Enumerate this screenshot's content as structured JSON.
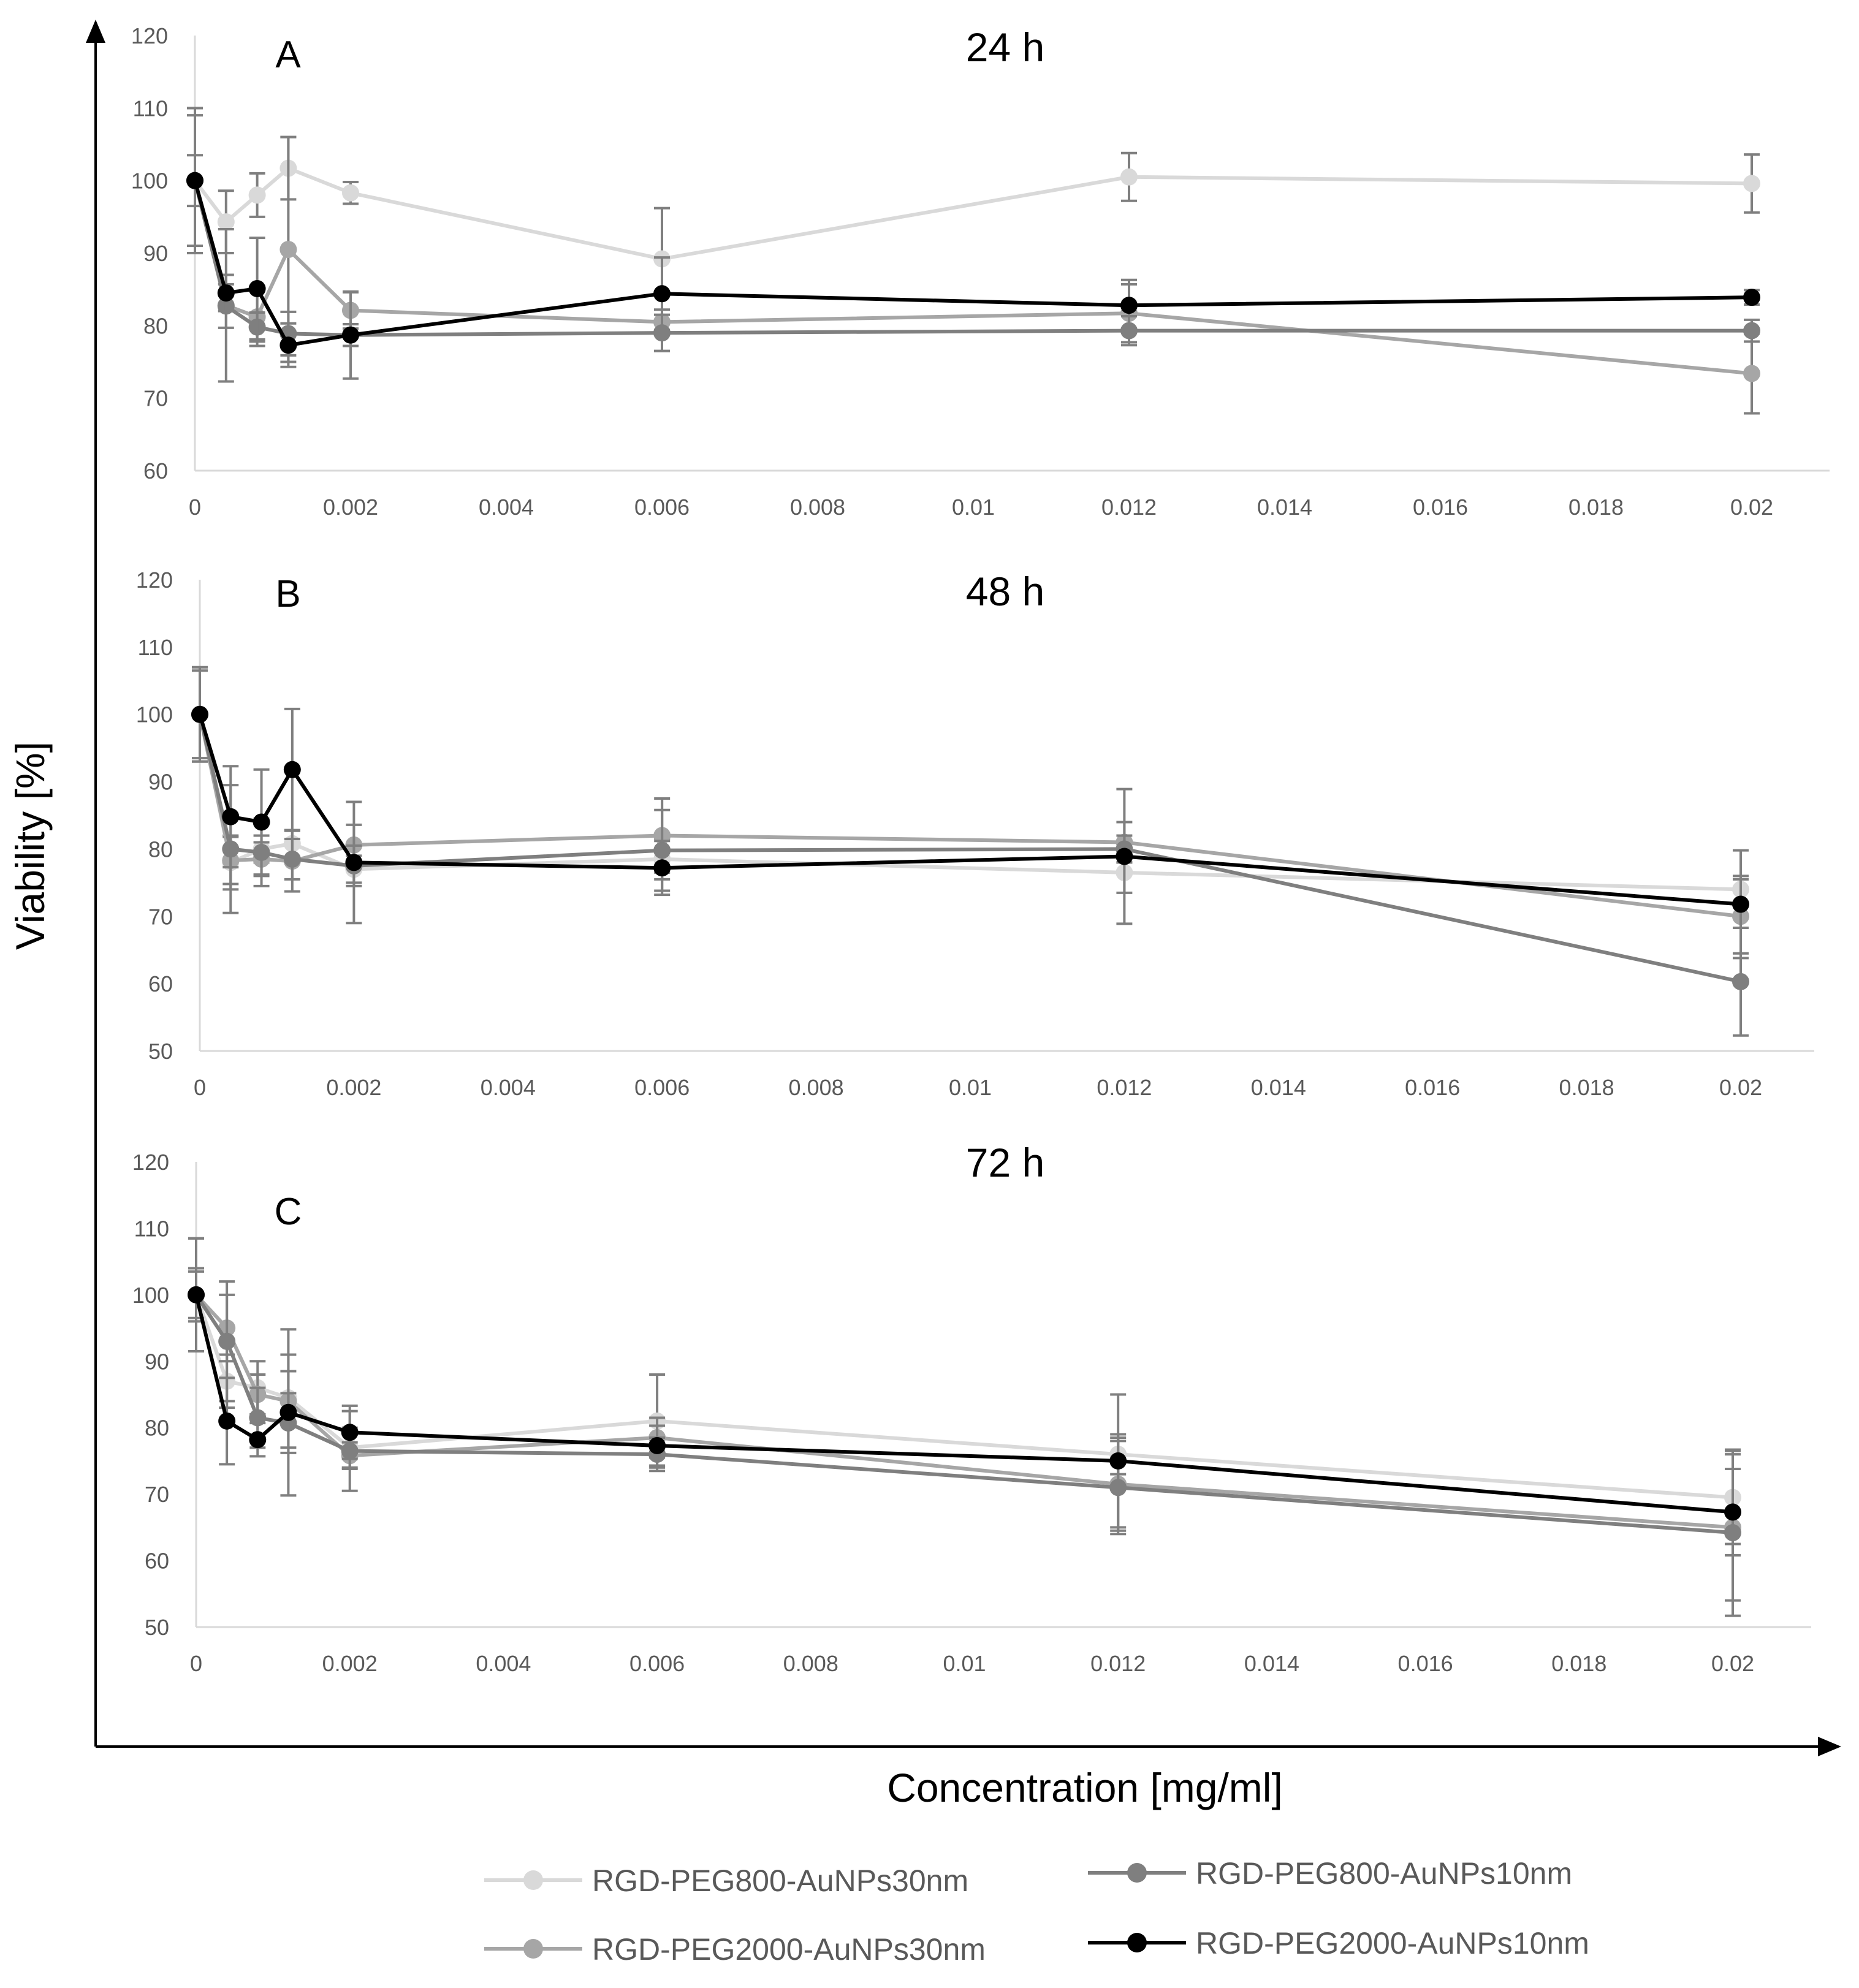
{
  "chart_data": {
    "type": "line",
    "xlabel": "Concentration [mg/ml]",
    "ylabel": "Viability [%]",
    "x_ticks": [
      "0",
      "0.002",
      "0.004",
      "0.006",
      "0.008",
      "0.01",
      "0.012",
      "0.014",
      "0.016",
      "0.018",
      "0.02"
    ],
    "x": [
      0,
      0.0004,
      0.0008,
      0.0012,
      0.002,
      0.006,
      0.012,
      0.02
    ],
    "legend": [
      {
        "name": "RGD-PEG800-AuNPs30nm",
        "color": "#d9d9d9"
      },
      {
        "name": "RGD-PEG800-AuNPs10nm",
        "color": "#7f7f7f"
      },
      {
        "name": "RGD-PEG2000-AuNPs30nm",
        "color": "#a6a6a6"
      },
      {
        "name": "RGD-PEG2000-AuNPs10nm",
        "color": "#000000"
      }
    ],
    "panels": [
      {
        "letter": "A",
        "title": "24 h",
        "ylim": [
          60,
          120
        ],
        "y_ticks": [
          "60",
          "70",
          "80",
          "90",
          "100",
          "110",
          "120"
        ],
        "series": [
          {
            "name": "RGD-PEG800-AuNPs30nm",
            "color": "#d9d9d9",
            "values": [
              100,
              94.3,
              98,
              101.7,
              98.3,
              89.2,
              100.5,
              99.6
            ],
            "errors": [
              10,
              4.3,
              3,
              4.3,
              1.5,
              7,
              3.3,
              4
            ]
          },
          {
            "name": "RGD-PEG800-AuNPs10nm",
            "color": "#7f7f7f",
            "values": [
              100,
              82.7,
              79.8,
              78.9,
              78.7,
              79,
              79.3,
              79.3
            ],
            "errors": [
              10,
              3,
              2,
              3,
              1.5,
              2.5,
              2,
              1.5
            ]
          },
          {
            "name": "RGD-PEG2000-AuNPs30nm",
            "color": "#a6a6a6",
            "values": [
              100,
              82.8,
              81.2,
              90.5,
              82.1,
              80.5,
              81.7,
              73.4
            ],
            "errors": [
              9,
              10.5,
              4,
              15.5,
              2.5,
              4,
              4,
              5.5
            ]
          },
          {
            "name": "RGD-PEG2000-AuNPs10nm",
            "color": "#000000",
            "values": [
              100,
              84.5,
              85.1,
              77.3,
              78.7,
              84.4,
              82.8,
              83.9
            ],
            "errors": [
              3.5,
              2.5,
              7,
              3,
              6,
              5,
              3.5,
              1
            ]
          }
        ]
      },
      {
        "letter": "B",
        "title": "48 h",
        "ylim": [
          50,
          120
        ],
        "y_ticks": [
          "50",
          "60",
          "70",
          "80",
          "90",
          "100",
          "110",
          "120"
        ],
        "series": [
          {
            "name": "RGD-PEG800-AuNPs30nm",
            "color": "#d9d9d9",
            "values": [
              100,
              78,
              80,
              80.8,
              77,
              78.5,
              76.5,
              74
            ],
            "errors": [
              7,
              4,
              2,
              2,
              2,
              3,
              3,
              2
            ]
          },
          {
            "name": "RGD-PEG800-AuNPs10nm",
            "color": "#7f7f7f",
            "values": [
              100,
              80,
              79.5,
              78.5,
              77.5,
              79.8,
              80,
              60.3
            ],
            "errors": [
              7,
              9.5,
              5,
              3,
              3,
              6,
              2,
              8
            ]
          },
          {
            "name": "RGD-PEG2000-AuNPs30nm",
            "color": "#a6a6a6",
            "values": [
              100,
              78.3,
              78.5,
              78.2,
              80.6,
              82,
              81,
              70
            ],
            "errors": [
              7,
              3.5,
              2.5,
              4.5,
              3,
              5.5,
              3,
              5.5
            ]
          },
          {
            "name": "RGD-PEG2000-AuNPs10nm",
            "color": "#000000",
            "values": [
              100,
              84.8,
              84,
              91.8,
              78,
              77.2,
              78.9,
              71.8
            ],
            "errors": [
              6.5,
              7.5,
              7.8,
              9,
              9,
              4,
              10,
              8
            ]
          }
        ]
      },
      {
        "letter": "C",
        "title": "72 h",
        "ylim": [
          50,
          120
        ],
        "y_ticks": [
          "50",
          "60",
          "70",
          "80",
          "90",
          "100",
          "110",
          "120"
        ],
        "series": [
          {
            "name": "RGD-PEG800-AuNPs30nm",
            "color": "#d9d9d9",
            "values": [
              100,
              87,
              86,
              84.5,
              77,
              81,
              76,
              69.5
            ],
            "errors": [
              8.5,
              4,
              4,
              4,
              3,
              7,
              3,
              7
            ]
          },
          {
            "name": "RGD-PEG800-AuNPs10nm",
            "color": "#7f7f7f",
            "values": [
              100,
              93,
              81.5,
              80.7,
              76.5,
              76,
              71,
              64.2
            ],
            "errors": [
              3.5,
              9,
              4.5,
              4.5,
              6,
              2.5,
              7,
              12.5
            ]
          },
          {
            "name": "RGD-PEG2000-AuNPs30nm",
            "color": "#a6a6a6",
            "values": [
              100,
              95,
              85,
              84,
              75.8,
              78.5,
              71.5,
              65
            ],
            "errors": [
              4,
              5,
              3,
              7,
              2,
              3,
              7,
              11
            ]
          },
          {
            "name": "RGD-PEG2000-AuNPs10nm",
            "color": "#000000",
            "values": [
              100,
              81,
              78.2,
              82.3,
              79.3,
              77.3,
              75,
              67.3
            ],
            "errors": [
              8.5,
              6.5,
              2.5,
              12.5,
              4,
              3,
              10,
              6.5
            ]
          }
        ]
      }
    ]
  }
}
